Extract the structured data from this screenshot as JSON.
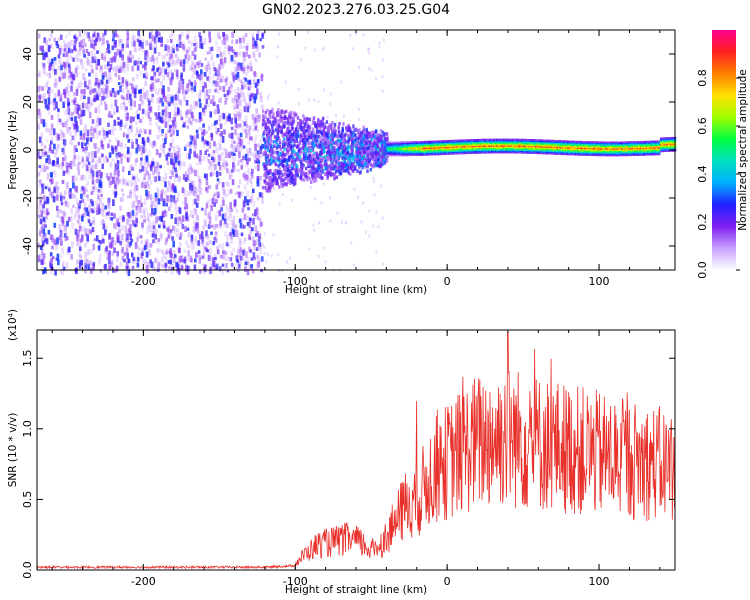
{
  "figure_title": "GN02.2023.276.03.25.G04",
  "chart_data": [
    {
      "type": "heatmap",
      "title": "",
      "xlabel": "Height of straight line (km)",
      "ylabel": "Frequency (Hz)",
      "xlim": [
        -270,
        150
      ],
      "ylim": [
        -50,
        50
      ],
      "xticks": [
        -200,
        -100,
        0,
        100
      ],
      "yticks": [
        -40,
        -20,
        0,
        20,
        40
      ],
      "colorbar": {
        "label": "Normalized spectral amplitude",
        "range": [
          0,
          1
        ],
        "ticks": [
          "0.0",
          "0.2",
          "0.4",
          "0.6",
          "0.8"
        ],
        "colormap": [
          "#ffffff",
          "#c8a0ff",
          "#7d1ff0",
          "#2020ff",
          "#00b0ff",
          "#00e0c0",
          "#00ff40",
          "#a0ff00",
          "#ffe000",
          "#ff8000",
          "#ff2020",
          "#ff0090"
        ]
      },
      "regions": [
        {
          "x_range": [
            -270,
            -122
          ],
          "description_freq_range": [
            -50,
            50
          ],
          "typical_amplitude": 0.05
        },
        {
          "x_range": [
            -122,
            -40
          ],
          "freq_range": [
            -15,
            15
          ],
          "typical_amplitude": 0.2
        },
        {
          "x_range": [
            -40,
            150
          ],
          "freq_range": [
            -1,
            4
          ],
          "typical_amplitude": 0.9
        }
      ],
      "grid": false
    },
    {
      "type": "line",
      "title": "",
      "xlabel": "Height of straight line (km)",
      "ylabel": "SNR (10 * v/v)",
      "y_scale_label": "(x10⁴)",
      "xlim": [
        -270,
        150
      ],
      "ylim": [
        0,
        1.7
      ],
      "xticks": [
        -200,
        -100,
        0,
        100
      ],
      "yticks": [
        0.0,
        0.5,
        1.0,
        1.5
      ],
      "series": [
        {
          "color": "#e8302a",
          "x": [
            -270,
            -240,
            -200,
            -160,
            -120,
            -101,
            -95,
            -85,
            -75,
            -65,
            -58,
            -50,
            -42,
            -35,
            -28,
            -22,
            -18,
            -14,
            -10,
            -6,
            -2,
            5,
            15,
            25,
            35,
            40,
            50,
            60,
            70,
            80,
            90,
            100,
            110,
            120,
            130,
            140,
            150
          ],
          "y": [
            0.02,
            0.02,
            0.02,
            0.02,
            0.02,
            0.03,
            0.1,
            0.18,
            0.2,
            0.22,
            0.2,
            0.14,
            0.2,
            0.32,
            0.45,
            0.5,
            0.52,
            0.62,
            0.68,
            0.72,
            0.75,
            0.8,
            0.88,
            0.92,
            0.95,
            0.95,
            0.92,
            0.9,
            0.88,
            0.86,
            0.84,
            0.82,
            0.8,
            0.78,
            0.77,
            0.75,
            0.74
          ],
          "envelope_max_y": 1.68,
          "envelope_max_x": 40
        }
      ],
      "grid": false
    }
  ]
}
